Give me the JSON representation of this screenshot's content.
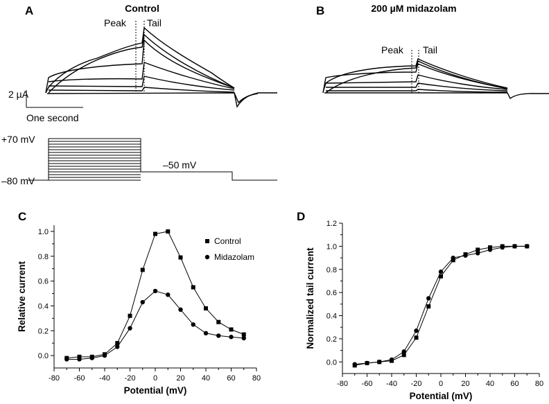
{
  "panels": {
    "A": {
      "letter": "A",
      "title": "Control",
      "peak": "Peak",
      "tail": "Tail",
      "scale_y": "2 µA",
      "scale_x": "One second"
    },
    "B": {
      "letter": "B",
      "title": "200 µM midazolam",
      "peak": "Peak",
      "tail": "Tail"
    },
    "protocol": {
      "v_high": "+70 mV",
      "v_low": "–80 mV",
      "v_tail": "–50 mV"
    }
  },
  "chart_data": [
    {
      "panel": "C",
      "type": "line",
      "xlabel": "Potential (mV)",
      "ylabel": "Relative current",
      "xlim": [
        -80,
        80
      ],
      "ylim": [
        -0.1,
        1.05
      ],
      "xticks": [
        -80,
        -60,
        -40,
        -20,
        0,
        20,
        40,
        60,
        80
      ],
      "yticks": [
        0.0,
        0.2,
        0.4,
        0.6,
        0.8,
        1.0
      ],
      "legend": "top-right",
      "series": [
        {
          "name": "Control",
          "marker": "square",
          "x": [
            -70,
            -60,
            -50,
            -40,
            -30,
            -20,
            -10,
            0,
            10,
            20,
            30,
            40,
            50,
            60,
            70
          ],
          "y": [
            -0.02,
            -0.01,
            -0.01,
            0.01,
            0.1,
            0.32,
            0.69,
            0.98,
            1.0,
            0.79,
            0.55,
            0.38,
            0.27,
            0.21,
            0.17
          ]
        },
        {
          "name": "Midazolam",
          "marker": "circle",
          "x": [
            -70,
            -60,
            -50,
            -40,
            -30,
            -20,
            -10,
            0,
            10,
            20,
            30,
            40,
            50,
            60,
            70
          ],
          "y": [
            -0.03,
            -0.03,
            -0.02,
            0.0,
            0.07,
            0.22,
            0.43,
            0.52,
            0.49,
            0.37,
            0.25,
            0.18,
            0.16,
            0.15,
            0.14
          ]
        }
      ]
    },
    {
      "panel": "D",
      "type": "line",
      "xlabel": "Potential (mV)",
      "ylabel": "Normalized tail current",
      "xlim": [
        -80,
        80
      ],
      "ylim": [
        -0.1,
        1.2
      ],
      "xticks": [
        -80,
        -60,
        -40,
        -20,
        0,
        20,
        40,
        60,
        80
      ],
      "yticks": [
        0.0,
        0.2,
        0.4,
        0.6,
        0.8,
        1.0,
        1.2
      ],
      "series": [
        {
          "name": "",
          "marker": "square",
          "x": [
            -70,
            -60,
            -50,
            -40,
            -30,
            -20,
            -10,
            0,
            10,
            20,
            30,
            40,
            50,
            60,
            70
          ],
          "y": [
            -0.03,
            -0.01,
            0.0,
            0.01,
            0.06,
            0.21,
            0.48,
            0.74,
            0.88,
            0.93,
            0.97,
            0.99,
            1.0,
            1.0,
            1.0
          ]
        },
        {
          "name": "",
          "marker": "circle",
          "x": [
            -70,
            -60,
            -50,
            -40,
            -30,
            -20,
            -10,
            0,
            10,
            20,
            30,
            40,
            50,
            60,
            70
          ],
          "y": [
            -0.02,
            -0.01,
            0.0,
            0.02,
            0.09,
            0.27,
            0.55,
            0.78,
            0.9,
            0.92,
            0.94,
            0.97,
            0.99,
            1.0,
            1.0
          ]
        }
      ]
    }
  ]
}
